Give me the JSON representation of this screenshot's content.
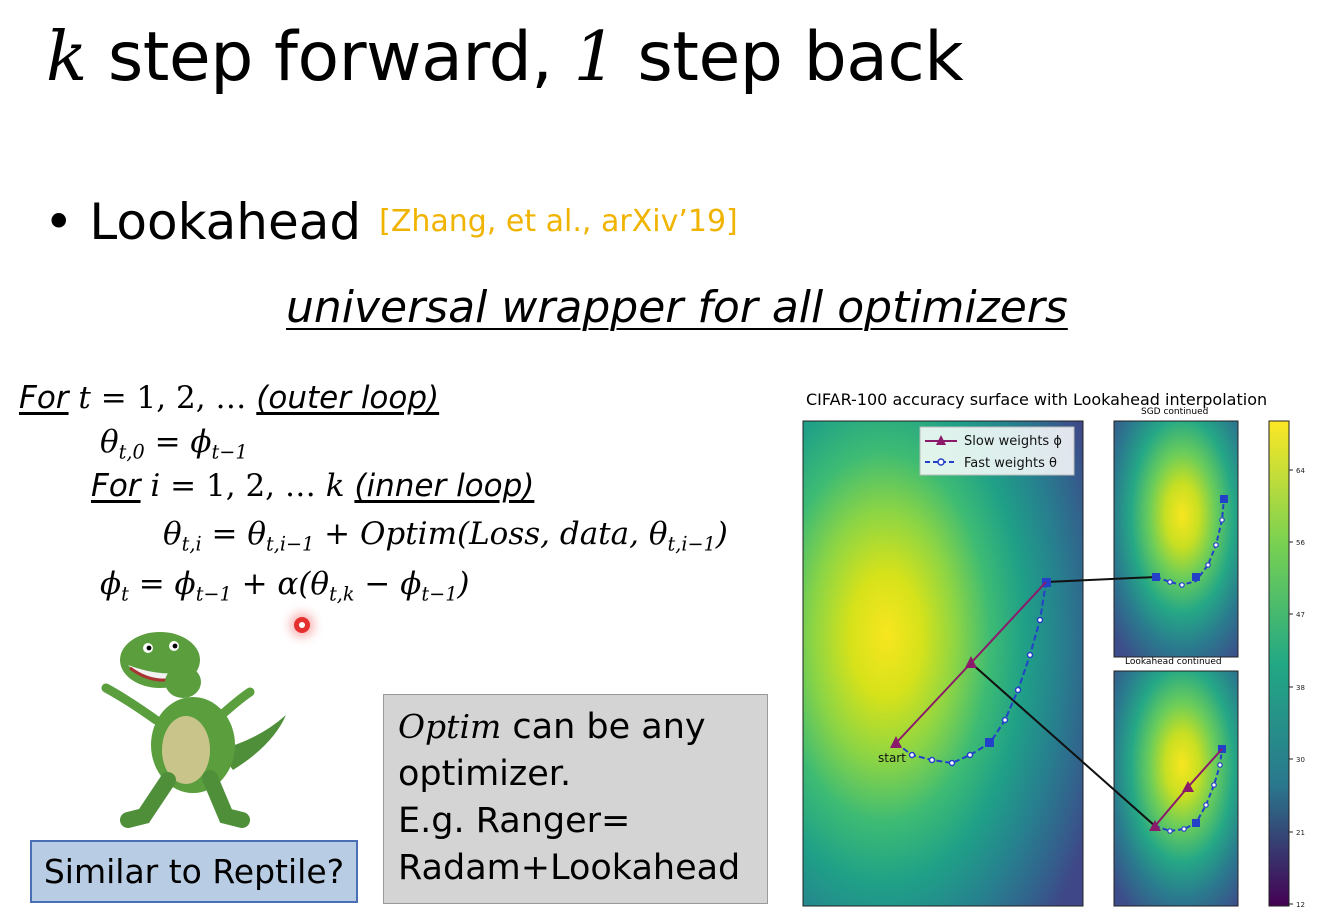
{
  "title": {
    "k": "k",
    "part1": " step forward, ",
    "one": "1",
    "part2": " step back"
  },
  "bullet": {
    "mark": "•",
    "text": "Lookahead",
    "citation": "[Zhang, et al., arXiv’19]"
  },
  "subtitle": "universal wrapper for all optimizers",
  "algorithm": {
    "outer_for": "For",
    "outer_var": "t",
    "outer_range": " = 1, 2, … ",
    "outer_comment": "(outer loop)",
    "init_lhs": "θ",
    "init_lhs_sub": "t,0",
    "init_rhs": " = ϕ",
    "init_rhs_sub": "t−1",
    "inner_for": "For",
    "inner_var": "i",
    "inner_range": " = 1, 2, … ",
    "inner_k": "k",
    "inner_comment": "(inner loop)",
    "update_lhs": "θ",
    "update_lhs_sub": "t,i",
    "update_eq": " = θ",
    "update_eq_sub": "t,i−1",
    "update_rest": " + Optim(Loss, data, θ",
    "update_rest_sub": "t,i−1",
    "update_close": ")",
    "slow_lhs": "ϕ",
    "slow_lhs_sub": "t",
    "slow_eq": " = ϕ",
    "slow_eq_sub": "t−1",
    "slow_rest": " + α(θ",
    "slow_rest_sub": "t,k",
    "slow_minus": " − ϕ",
    "slow_minus_sub": "t−1",
    "slow_close": ")"
  },
  "note_box": {
    "optim": "Optim",
    "line1": " can be any",
    "line2": "optimizer.",
    "line3": "E.g. Ranger=",
    "line4": "Radam+Lookahead"
  },
  "reptile_box": "Similar to Reptile?",
  "figure": {
    "title": "CIFAR-100 accuracy surface with Lookahead interpolation",
    "panel_top_title": "SGD continued",
    "panel_bottom_title": "Lookahead continued",
    "legend_slow": "Slow weights ϕ",
    "legend_fast": "Fast weights θ",
    "start_label": "start",
    "colorbar_ticks": [
      "64",
      "56",
      "47",
      "38",
      "30",
      "21",
      "12"
    ],
    "colors": {
      "slow": "#8b1a6b",
      "fast": "#2340c8",
      "connector": "#111111"
    }
  }
}
